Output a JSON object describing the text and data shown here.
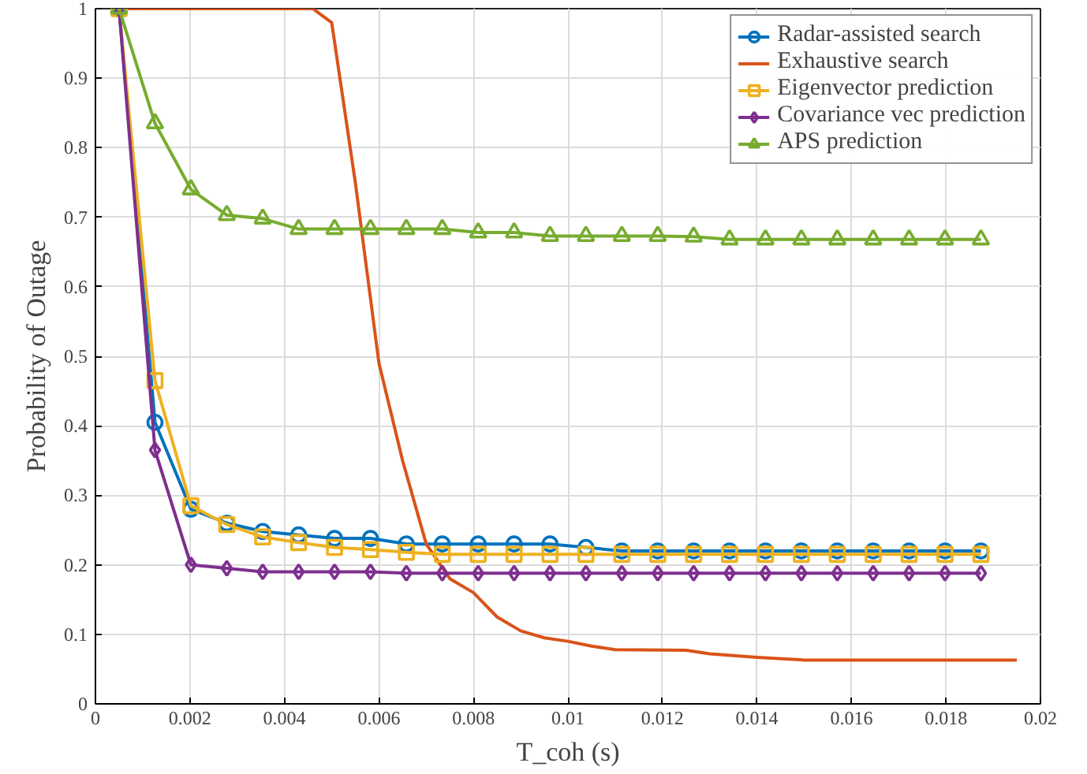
{
  "chart_data": {
    "type": "line",
    "xlabel": "T_coh (s)",
    "ylabel": "Probability of Outage",
    "x": [
      0.0005,
      0.00126,
      0.00202,
      0.00278,
      0.00354,
      0.0043,
      0.00506,
      0.00582,
      0.00658,
      0.00734,
      0.0081,
      0.00886,
      0.00962,
      0.01038,
      0.01114,
      0.0119,
      0.01266,
      0.01342,
      0.01418,
      0.01494,
      0.0157,
      0.01646,
      0.01722,
      0.01798,
      0.01874
    ],
    "series": [
      {
        "name": "Radar-assisted search",
        "color": "#0072bd",
        "marker": "circle",
        "values": [
          1,
          0.405,
          0.28,
          0.26,
          0.248,
          0.243,
          0.238,
          0.238,
          0.23,
          0.23,
          0.23,
          0.23,
          0.23,
          0.225,
          0.22,
          0.22,
          0.22,
          0.22,
          0.22,
          0.22,
          0.22,
          0.22,
          0.22,
          0.22,
          0.22
        ]
      },
      {
        "name": "Exhaustive search",
        "color": "#d95319",
        "marker": "none",
        "x": [
          0.0005,
          0.0046,
          0.005,
          0.0055,
          0.006,
          0.0065,
          0.007,
          0.0075,
          0.008,
          0.0085,
          0.009,
          0.0095,
          0.01,
          0.0105,
          0.011,
          0.0125,
          0.013,
          0.014,
          0.015,
          0.0195
        ],
        "values": [
          1,
          1,
          0.98,
          0.75,
          0.49,
          0.35,
          0.23,
          0.18,
          0.16,
          0.125,
          0.105,
          0.095,
          0.09,
          0.083,
          0.078,
          0.077,
          0.072,
          0.067,
          0.063,
          0.063
        ]
      },
      {
        "name": "Eigenvector prediction",
        "color": "#edb120",
        "marker": "square",
        "values": [
          1,
          0.465,
          0.285,
          0.258,
          0.24,
          0.232,
          0.225,
          0.222,
          0.218,
          0.215,
          0.215,
          0.215,
          0.215,
          0.215,
          0.215,
          0.215,
          0.215,
          0.215,
          0.215,
          0.215,
          0.215,
          0.215,
          0.215,
          0.215,
          0.215
        ]
      },
      {
        "name": "Covariance vec prediction",
        "color": "#7e2f8e",
        "marker": "diamond",
        "values": [
          1,
          0.365,
          0.2,
          0.195,
          0.19,
          0.19,
          0.19,
          0.19,
          0.188,
          0.188,
          0.188,
          0.188,
          0.188,
          0.188,
          0.188,
          0.188,
          0.188,
          0.188,
          0.188,
          0.188,
          0.188,
          0.188,
          0.188,
          0.188,
          0.188
        ]
      },
      {
        "name": "APS prediction",
        "color": "#77ac30",
        "marker": "triangle",
        "values": [
          1,
          0.835,
          0.74,
          0.703,
          0.698,
          0.683,
          0.683,
          0.683,
          0.683,
          0.683,
          0.678,
          0.678,
          0.673,
          0.673,
          0.673,
          0.673,
          0.672,
          0.668,
          0.668,
          0.668,
          0.668,
          0.668,
          0.668,
          0.668,
          0.668
        ]
      }
    ],
    "xlim": [
      0,
      0.02
    ],
    "xticks": [
      0,
      0.002,
      0.004,
      0.006,
      0.008,
      0.01,
      0.012,
      0.014,
      0.016,
      0.018,
      0.02
    ],
    "ylim": [
      0,
      1
    ],
    "yticks": [
      0,
      0.1,
      0.2,
      0.3,
      0.4,
      0.5,
      0.6,
      0.7,
      0.8,
      0.9,
      1
    ],
    "grid": true,
    "legend": "top right",
    "line_style": "solid"
  }
}
